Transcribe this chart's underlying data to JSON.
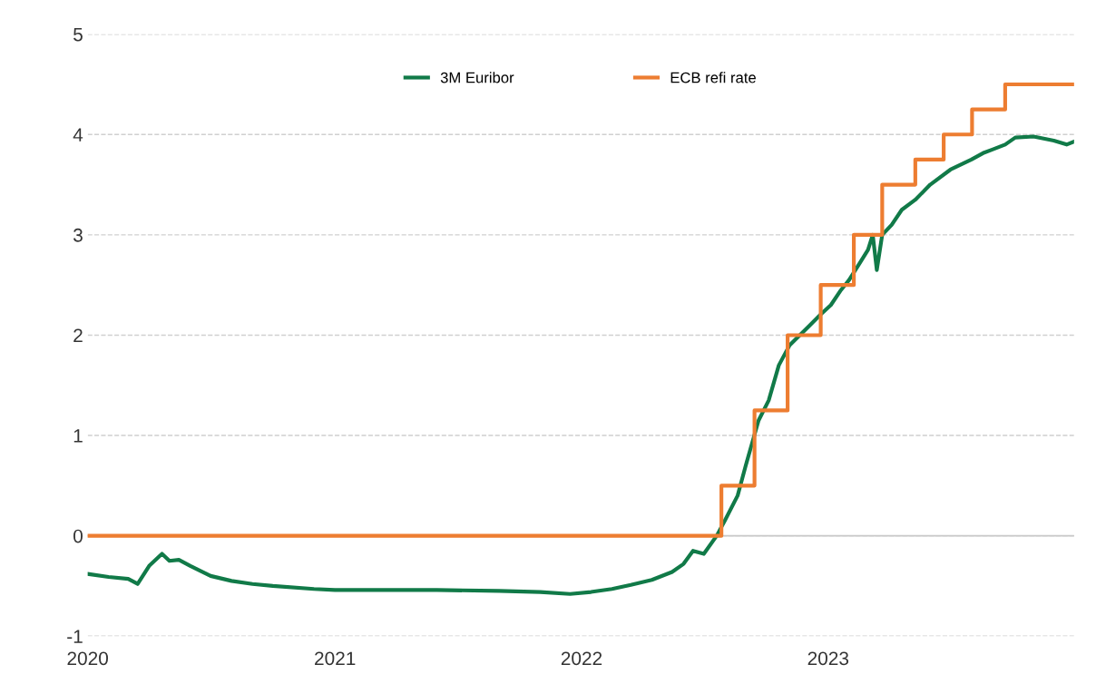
{
  "chart_data": {
    "type": "line",
    "xlim": [
      "2020-01-01",
      "2023-12-31"
    ],
    "xticks": [
      {
        "value": "2020-01-01",
        "label": "2020"
      },
      {
        "value": "2021-01-01",
        "label": "2021"
      },
      {
        "value": "2022-01-01",
        "label": "2022"
      },
      {
        "value": "2023-01-01",
        "label": "2023"
      }
    ],
    "ylim": [
      -1,
      5
    ],
    "yticks": [
      {
        "value": -1,
        "label": "-1"
      },
      0,
      1,
      2,
      3,
      4,
      5
    ],
    "grid": "y",
    "legend": "top",
    "ref_lines": [
      {
        "axis": "y",
        "value": 0,
        "color": "#c8c8c8",
        "line_style": "solid"
      }
    ],
    "series": [
      {
        "name": "3M Euribor",
        "color": "#117a48",
        "x": [
          "2020-01-01",
          "2020-02-01",
          "2020-03-01",
          "2020-03-15",
          "2020-04-01",
          "2020-04-20",
          "2020-05-01",
          "2020-05-15",
          "2020-06-01",
          "2020-07-01",
          "2020-08-01",
          "2020-09-01",
          "2020-10-01",
          "2020-12-01",
          "2021-01-01",
          "2021-03-01",
          "2021-06-01",
          "2021-09-01",
          "2021-11-01",
          "2021-12-15",
          "2022-01-15",
          "2022-02-15",
          "2022-03-15",
          "2022-04-15",
          "2022-05-15",
          "2022-06-01",
          "2022-06-15",
          "2022-07-01",
          "2022-07-20",
          "2022-08-01",
          "2022-08-20",
          "2022-09-01",
          "2022-09-20",
          "2022-10-05",
          "2022-10-20",
          "2022-11-05",
          "2022-11-20",
          "2022-12-05",
          "2022-12-20",
          "2023-01-05",
          "2023-01-20",
          "2023-02-01",
          "2023-02-15",
          "2023-03-01",
          "2023-03-08",
          "2023-03-14",
          "2023-03-22",
          "2023-04-05",
          "2023-04-20",
          "2023-05-10",
          "2023-06-01",
          "2023-07-01",
          "2023-08-01",
          "2023-08-20",
          "2023-09-01",
          "2023-09-20",
          "2023-10-05",
          "2023-11-01",
          "2023-12-01",
          "2023-12-20",
          "2023-12-31"
        ],
        "values": [
          -0.38,
          -0.41,
          -0.43,
          -0.48,
          -0.3,
          -0.18,
          -0.25,
          -0.24,
          -0.3,
          -0.4,
          -0.45,
          -0.48,
          -0.5,
          -0.53,
          -0.54,
          -0.54,
          -0.54,
          -0.55,
          -0.56,
          -0.58,
          -0.56,
          -0.53,
          -0.49,
          -0.44,
          -0.36,
          -0.28,
          -0.15,
          -0.18,
          0.0,
          0.15,
          0.4,
          0.7,
          1.15,
          1.35,
          1.7,
          1.9,
          2.0,
          2.1,
          2.2,
          2.3,
          2.45,
          2.55,
          2.7,
          2.85,
          3.0,
          2.65,
          3.0,
          3.1,
          3.25,
          3.35,
          3.5,
          3.65,
          3.75,
          3.82,
          3.85,
          3.9,
          3.97,
          3.98,
          3.94,
          3.9,
          3.93
        ]
      },
      {
        "name": "ECB refi rate",
        "type": "step",
        "color": "#ed7d31",
        "x": [
          "2020-01-01",
          "2022-07-27",
          "2022-09-14",
          "2022-11-02",
          "2022-12-21",
          "2023-02-08",
          "2023-03-22",
          "2023-05-10",
          "2023-06-21",
          "2023-08-02",
          "2023-09-20",
          "2023-12-31"
        ],
        "values": [
          0,
          0.5,
          1.25,
          2.0,
          2.5,
          3.0,
          3.5,
          3.75,
          4.0,
          4.25,
          4.5,
          4.5
        ]
      }
    ]
  }
}
